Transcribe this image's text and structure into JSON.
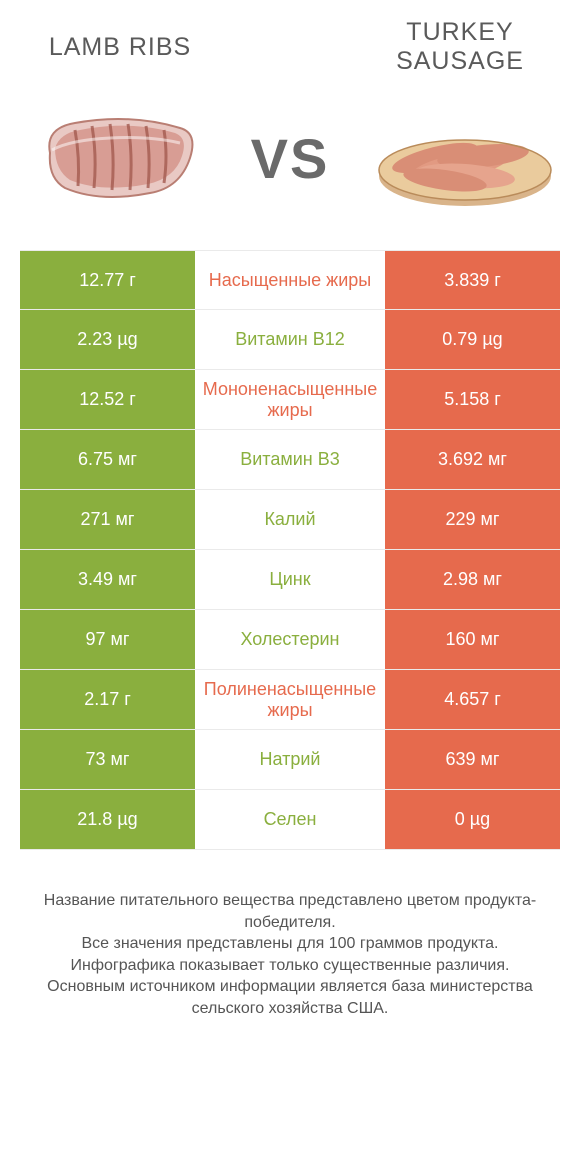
{
  "colors": {
    "left": "#8aaf3e",
    "right": "#e66a4d",
    "mid_left": "#8aaf3e",
    "mid_right": "#e66a4d",
    "text_dark": "#5a5a5a"
  },
  "header": {
    "left_title": "LAMB RIBS",
    "right_title": "TURKEY SAUSAGE",
    "vs": "VS"
  },
  "rows": [
    {
      "left": "12.77 г",
      "label": "Насыщенные жиры",
      "right": "3.839 г",
      "winner": "right"
    },
    {
      "left": "2.23 µg",
      "label": "Витамин B12",
      "right": "0.79 µg",
      "winner": "left"
    },
    {
      "left": "12.52 г",
      "label": "Мононенасыщенные жиры",
      "right": "5.158 г",
      "winner": "right"
    },
    {
      "left": "6.75 мг",
      "label": "Витамин B3",
      "right": "3.692 мг",
      "winner": "left"
    },
    {
      "left": "271 мг",
      "label": "Калий",
      "right": "229 мг",
      "winner": "left"
    },
    {
      "left": "3.49 мг",
      "label": "Цинк",
      "right": "2.98 мг",
      "winner": "left"
    },
    {
      "left": "97 мг",
      "label": "Холестерин",
      "right": "160 мг",
      "winner": "left"
    },
    {
      "left": "2.17 г",
      "label": "Полиненасыщенные жиры",
      "right": "4.657 г",
      "winner": "right"
    },
    {
      "left": "73 мг",
      "label": "Натрий",
      "right": "639 мг",
      "winner": "left"
    },
    {
      "left": "21.8 µg",
      "label": "Селен",
      "right": "0 µg",
      "winner": "left"
    }
  ],
  "footer": {
    "line1": "Название питательного вещества представлено цветом продукта-победителя.",
    "line2": "Все значения представлены для 100 граммов продукта.",
    "line3": "Инфографика показывает только существенные различия.",
    "line4": "Основным источником информации является база министерства сельского хозяйства США."
  }
}
